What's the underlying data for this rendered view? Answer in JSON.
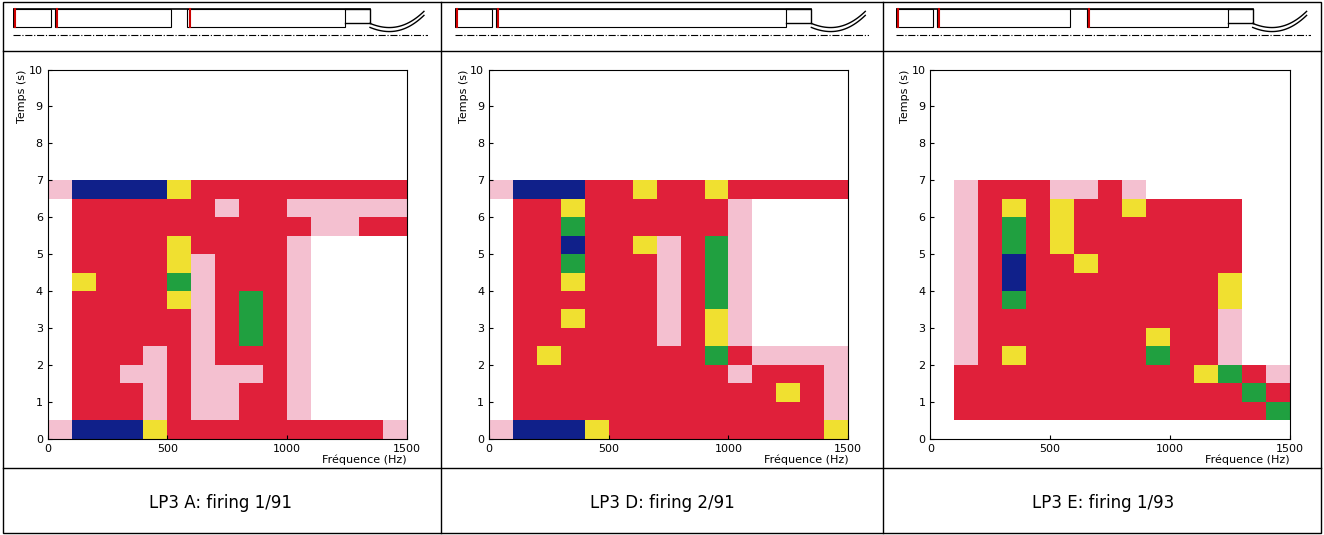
{
  "chart_data": [
    {
      "type": "heatmap",
      "caption": "LP3 A: firing 1/91",
      "xlabel": "Fréquence (Hz)",
      "ylabel": "Temps (s)",
      "xlim": [
        0,
        1500
      ],
      "ylim": [
        0,
        10
      ],
      "xticks": [
        0,
        500,
        1000,
        1500
      ],
      "yticks": [
        0,
        1,
        2,
        3,
        4,
        5,
        6,
        7,
        8,
        9,
        10
      ],
      "x_edges": [
        0,
        100,
        200,
        300,
        400,
        500,
        600,
        700,
        800,
        900,
        1000,
        1100,
        1200,
        1300,
        1400,
        1500
      ],
      "y_edges": [
        0,
        0.5,
        1,
        1.5,
        2,
        2.5,
        3,
        3.5,
        4,
        4.5,
        5,
        5.5,
        6,
        6.5,
        7
      ],
      "colors": [
        "#ffffff",
        "#f4c0d0",
        "#e0203a",
        "#f0e030",
        "#20a040",
        "#10208a"
      ],
      "cells": [
        [
          1,
          5,
          5,
          5,
          3,
          2,
          2,
          2,
          2,
          2,
          2,
          2,
          2,
          2,
          1
        ],
        [
          0,
          2,
          2,
          2,
          1,
          2,
          1,
          1,
          2,
          2,
          1,
          0,
          0,
          0,
          0
        ],
        [
          0,
          2,
          2,
          2,
          1,
          2,
          1,
          1,
          2,
          2,
          1,
          0,
          0,
          0,
          0
        ],
        [
          0,
          2,
          2,
          1,
          1,
          2,
          1,
          1,
          1,
          2,
          1,
          0,
          0,
          0,
          0
        ],
        [
          0,
          2,
          2,
          2,
          1,
          2,
          1,
          2,
          2,
          2,
          1,
          0,
          0,
          0,
          0
        ],
        [
          0,
          2,
          2,
          2,
          2,
          2,
          1,
          2,
          4,
          2,
          1,
          0,
          0,
          0,
          0
        ],
        [
          0,
          2,
          2,
          2,
          2,
          2,
          1,
          2,
          4,
          2,
          1,
          0,
          0,
          0,
          0
        ],
        [
          0,
          2,
          2,
          2,
          2,
          3,
          1,
          2,
          4,
          2,
          1,
          0,
          0,
          0,
          0
        ],
        [
          0,
          3,
          2,
          2,
          2,
          4,
          1,
          2,
          2,
          2,
          1,
          0,
          0,
          0,
          0
        ],
        [
          0,
          2,
          2,
          2,
          2,
          3,
          1,
          2,
          2,
          2,
          1,
          0,
          0,
          0,
          0
        ],
        [
          0,
          2,
          2,
          2,
          2,
          3,
          2,
          2,
          2,
          2,
          1,
          0,
          0,
          0,
          0
        ],
        [
          0,
          2,
          2,
          2,
          2,
          2,
          2,
          2,
          2,
          2,
          2,
          1,
          1,
          2,
          2
        ],
        [
          0,
          2,
          2,
          2,
          2,
          2,
          2,
          1,
          2,
          2,
          1,
          1,
          1,
          1,
          1
        ],
        [
          1,
          5,
          5,
          5,
          5,
          3,
          2,
          2,
          2,
          2,
          2,
          2,
          2,
          2,
          2
        ]
      ]
    },
    {
      "type": "heatmap",
      "caption": "LP3 D: firing 2/91",
      "xlabel": "Fréquence (Hz)",
      "ylabel": "Temps (s)",
      "xlim": [
        0,
        1500
      ],
      "ylim": [
        0,
        10
      ],
      "xticks": [
        0,
        500,
        1000,
        1500
      ],
      "yticks": [
        0,
        1,
        2,
        3,
        4,
        5,
        6,
        7,
        8,
        9,
        10
      ],
      "x_edges": [
        0,
        100,
        200,
        300,
        400,
        500,
        600,
        700,
        800,
        900,
        1000,
        1100,
        1200,
        1300,
        1400,
        1500
      ],
      "y_edges": [
        0,
        0.5,
        1,
        1.5,
        2,
        2.5,
        3,
        3.5,
        4,
        4.5,
        5,
        5.5,
        6,
        6.5,
        7
      ],
      "colors": [
        "#ffffff",
        "#f4c0d0",
        "#e0203a",
        "#f0e030",
        "#20a040",
        "#10208a"
      ],
      "cells": [
        [
          1,
          5,
          5,
          5,
          3,
          2,
          2,
          2,
          2,
          2,
          2,
          2,
          2,
          2,
          3
        ],
        [
          0,
          2,
          2,
          2,
          2,
          2,
          2,
          2,
          2,
          2,
          2,
          2,
          2,
          2,
          1
        ],
        [
          0,
          2,
          2,
          2,
          2,
          2,
          2,
          2,
          2,
          2,
          2,
          2,
          3,
          2,
          1
        ],
        [
          0,
          2,
          2,
          2,
          2,
          2,
          2,
          2,
          2,
          2,
          1,
          2,
          2,
          2,
          1
        ],
        [
          0,
          2,
          3,
          2,
          2,
          2,
          2,
          2,
          2,
          4,
          2,
          1,
          1,
          1,
          1
        ],
        [
          0,
          2,
          2,
          2,
          2,
          2,
          2,
          1,
          2,
          3,
          1,
          0,
          0,
          0,
          0
        ],
        [
          0,
          2,
          2,
          3,
          2,
          2,
          2,
          1,
          2,
          3,
          1,
          0,
          0,
          0,
          0
        ],
        [
          0,
          2,
          2,
          2,
          2,
          2,
          2,
          1,
          2,
          4,
          1,
          0,
          0,
          0,
          0
        ],
        [
          0,
          2,
          2,
          3,
          2,
          2,
          2,
          1,
          2,
          4,
          1,
          0,
          0,
          0,
          0
        ],
        [
          0,
          2,
          2,
          4,
          2,
          2,
          2,
          1,
          2,
          4,
          1,
          0,
          0,
          0,
          0
        ],
        [
          0,
          2,
          2,
          5,
          2,
          2,
          3,
          1,
          2,
          4,
          1,
          0,
          0,
          0,
          0
        ],
        [
          0,
          2,
          2,
          4,
          2,
          2,
          2,
          2,
          2,
          2,
          1,
          0,
          0,
          0,
          0
        ],
        [
          0,
          2,
          2,
          3,
          2,
          2,
          2,
          2,
          2,
          2,
          1,
          0,
          0,
          0,
          0
        ],
        [
          1,
          5,
          5,
          5,
          2,
          2,
          3,
          2,
          2,
          3,
          2,
          2,
          2,
          2,
          2
        ]
      ]
    },
    {
      "type": "heatmap",
      "caption": "LP3 E: firing 1/93",
      "xlabel": "Fréquence (Hz)",
      "ylabel": "Temps (s)",
      "xlim": [
        0,
        1500
      ],
      "ylim": [
        0,
        10
      ],
      "xticks": [
        0,
        500,
        1000,
        1500
      ],
      "yticks": [
        0,
        1,
        2,
        3,
        4,
        5,
        6,
        7,
        8,
        9,
        10
      ],
      "x_edges": [
        0,
        100,
        200,
        300,
        400,
        500,
        600,
        700,
        800,
        900,
        1000,
        1100,
        1200,
        1300,
        1400,
        1500
      ],
      "y_edges": [
        0,
        0.5,
        1,
        1.5,
        2,
        2.5,
        3,
        3.5,
        4,
        4.5,
        5,
        5.5,
        6,
        6.5,
        7
      ],
      "colors": [
        "#ffffff",
        "#f4c0d0",
        "#e0203a",
        "#f0e030",
        "#20a040",
        "#10208a"
      ],
      "cells": [
        [
          0,
          0,
          0,
          0,
          0,
          0,
          0,
          0,
          0,
          0,
          0,
          0,
          0,
          0,
          0
        ],
        [
          0,
          2,
          2,
          2,
          2,
          2,
          2,
          2,
          2,
          2,
          2,
          2,
          2,
          2,
          4
        ],
        [
          0,
          2,
          2,
          2,
          2,
          2,
          2,
          2,
          2,
          2,
          2,
          2,
          2,
          4,
          2
        ],
        [
          0,
          2,
          2,
          2,
          2,
          2,
          2,
          2,
          2,
          2,
          2,
          3,
          4,
          2,
          1
        ],
        [
          0,
          1,
          2,
          3,
          2,
          2,
          2,
          2,
          2,
          4,
          2,
          2,
          1,
          0,
          0
        ],
        [
          0,
          1,
          2,
          2,
          2,
          2,
          2,
          2,
          2,
          3,
          2,
          2,
          1,
          0,
          0
        ],
        [
          0,
          1,
          2,
          2,
          2,
          2,
          2,
          2,
          2,
          2,
          2,
          2,
          1,
          0,
          0
        ],
        [
          0,
          1,
          2,
          4,
          2,
          2,
          2,
          2,
          2,
          2,
          2,
          2,
          3,
          0,
          0
        ],
        [
          0,
          1,
          2,
          5,
          2,
          2,
          2,
          2,
          2,
          2,
          2,
          2,
          3,
          0,
          0
        ],
        [
          0,
          1,
          2,
          5,
          2,
          2,
          3,
          2,
          2,
          2,
          2,
          2,
          2,
          0,
          0
        ],
        [
          0,
          1,
          2,
          4,
          2,
          3,
          2,
          2,
          2,
          2,
          2,
          2,
          2,
          0,
          0
        ],
        [
          0,
          1,
          2,
          4,
          2,
          3,
          2,
          2,
          2,
          2,
          2,
          2,
          2,
          0,
          0
        ],
        [
          0,
          1,
          2,
          3,
          2,
          3,
          2,
          2,
          3,
          2,
          2,
          2,
          2,
          0,
          0
        ],
        [
          0,
          1,
          2,
          2,
          2,
          1,
          1,
          2,
          1,
          0,
          0,
          0,
          0,
          0,
          0
        ]
      ]
    }
  ]
}
